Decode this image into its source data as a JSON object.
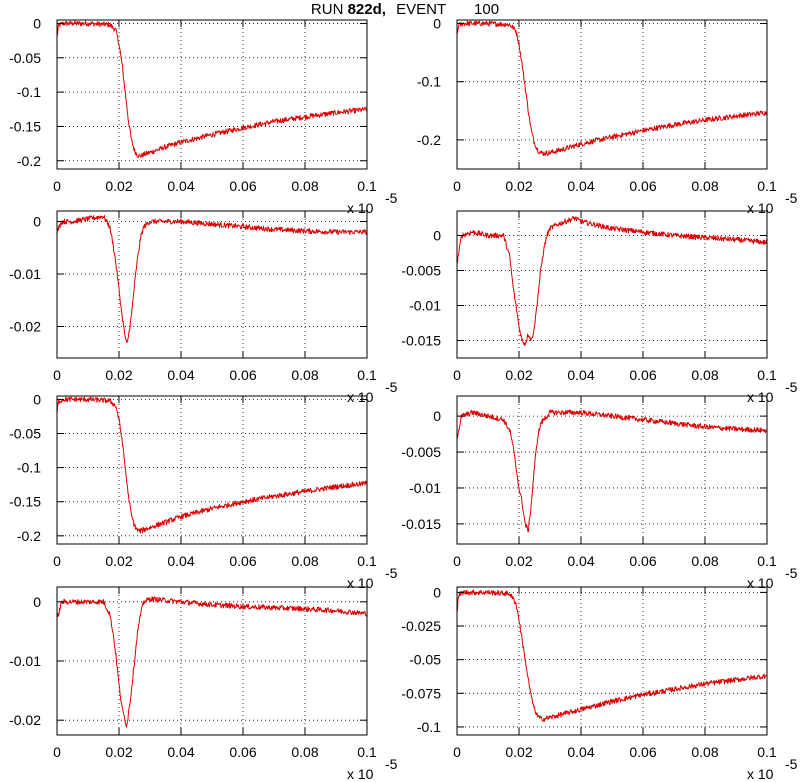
{
  "title": {
    "run_label": "RUN",
    "run_value": "822d,",
    "event_label": "EVENT",
    "event_value": "100"
  },
  "colors": {
    "trace": "#dd0000",
    "axes": "#000000"
  },
  "chart_data": [
    {
      "type": "line",
      "xlim": [
        0,
        0.1
      ],
      "ylim": [
        -0.212,
        0.005
      ],
      "xticks": [
        0,
        0.02,
        0.04,
        0.06,
        0.08,
        0.1
      ],
      "xtick_labels": [
        "0",
        "0.02",
        "0.04",
        "0.06",
        "0.08",
        "0.1"
      ],
      "yticks": [
        0,
        -0.05,
        -0.1,
        -0.15,
        -0.2
      ],
      "ytick_labels": [
        "0",
        "-0.05",
        "-0.1",
        "-0.15",
        "-0.2"
      ],
      "x_exponent": "x 10",
      "x_exponent_power": "-5",
      "grid": true,
      "series": [
        {
          "x": [
            0,
            0.0005,
            0.002,
            0.01,
            0.017,
            0.019,
            0.02,
            0.021,
            0.022,
            0.023,
            0.024,
            0.025,
            0.026,
            0.027,
            0.028,
            0.03,
            0.035,
            0.04,
            0.05,
            0.06,
            0.07,
            0.08,
            0.09,
            0.1
          ],
          "y": [
            -0.02,
            -0.003,
            0,
            0,
            -0.002,
            -0.01,
            -0.03,
            -0.06,
            -0.1,
            -0.14,
            -0.17,
            -0.185,
            -0.192,
            -0.193,
            -0.191,
            -0.188,
            -0.18,
            -0.173,
            -0.162,
            -0.152,
            -0.143,
            -0.136,
            -0.13,
            -0.125
          ]
        }
      ]
    },
    {
      "type": "line",
      "xlim": [
        0,
        0.1
      ],
      "ylim": [
        -0.25,
        0.006
      ],
      "xticks": [
        0,
        0.02,
        0.04,
        0.06,
        0.08,
        0.1
      ],
      "xtick_labels": [
        "0",
        "0.02",
        "0.04",
        "0.06",
        "0.08",
        "0.1"
      ],
      "yticks": [
        0,
        -0.1,
        -0.2
      ],
      "ytick_labels": [
        "0",
        "-0.1",
        "-0.2"
      ],
      "x_exponent": "x 10",
      "x_exponent_power": "-5",
      "grid": true,
      "series": [
        {
          "x": [
            0,
            0.0005,
            0.002,
            0.01,
            0.017,
            0.019,
            0.02,
            0.021,
            0.022,
            0.023,
            0.024,
            0.025,
            0.026,
            0.027,
            0.028,
            0.03,
            0.035,
            0.04,
            0.05,
            0.06,
            0.07,
            0.08,
            0.09,
            0.1
          ],
          "y": [
            -0.02,
            -0.003,
            0,
            0,
            -0.002,
            -0.012,
            -0.035,
            -0.07,
            -0.11,
            -0.15,
            -0.185,
            -0.205,
            -0.217,
            -0.222,
            -0.223,
            -0.222,
            -0.215,
            -0.207,
            -0.195,
            -0.184,
            -0.174,
            -0.166,
            -0.159,
            -0.153
          ]
        }
      ]
    },
    {
      "type": "line",
      "xlim": [
        0,
        0.1
      ],
      "ylim": [
        -0.026,
        0.002
      ],
      "xticks": [
        0,
        0.02,
        0.04,
        0.06,
        0.08,
        0.1
      ],
      "xtick_labels": [
        "0",
        "0.02",
        "0.04",
        "0.06",
        "0.08",
        "0.1"
      ],
      "yticks": [
        0,
        -0.01,
        -0.02
      ],
      "ytick_labels": [
        "0",
        "-0.01",
        "-0.02"
      ],
      "x_exponent": "x 10",
      "x_exponent_power": "-5",
      "grid": true,
      "series": [
        {
          "x": [
            0,
            0.0015,
            0.005,
            0.01,
            0.015,
            0.017,
            0.018,
            0.019,
            0.02,
            0.021,
            0.022,
            0.0225,
            0.023,
            0.024,
            0.025,
            0.026,
            0.027,
            0.028,
            0.03,
            0.04,
            0.05,
            0.06,
            0.07,
            0.08,
            0.09,
            0.1
          ],
          "y": [
            -0.002,
            0,
            0,
            0.0005,
            0.001,
            -0.001,
            -0.004,
            -0.008,
            -0.013,
            -0.018,
            -0.022,
            -0.0235,
            -0.022,
            -0.018,
            -0.012,
            -0.007,
            -0.003,
            -0.001,
            0,
            0,
            -0.0005,
            -0.001,
            -0.0015,
            -0.0018,
            -0.002,
            -0.002
          ]
        }
      ]
    },
    {
      "type": "line",
      "xlim": [
        0,
        0.1
      ],
      "ylim": [
        -0.0175,
        0.0035
      ],
      "xticks": [
        0,
        0.02,
        0.04,
        0.06,
        0.08,
        0.1
      ],
      "xtick_labels": [
        "0",
        "0.02",
        "0.04",
        "0.06",
        "0.08",
        "0.1"
      ],
      "yticks": [
        0,
        -0.005,
        -0.01,
        -0.015
      ],
      "ytick_labels": [
        "0",
        "-0.005",
        "-0.01",
        "-0.015"
      ],
      "x_exponent": "x 10",
      "x_exponent_power": "-5",
      "grid": true,
      "series": [
        {
          "x": [
            0,
            0.0015,
            0.005,
            0.01,
            0.015,
            0.017,
            0.018,
            0.019,
            0.02,
            0.021,
            0.022,
            0.023,
            0.024,
            0.025,
            0.026,
            0.027,
            0.028,
            0.029,
            0.03,
            0.032,
            0.035,
            0.038,
            0.04,
            0.045,
            0.05,
            0.06,
            0.07,
            0.08,
            0.09,
            0.1
          ],
          "y": [
            -0.004,
            0,
            0.0005,
            0,
            0,
            -0.003,
            -0.007,
            -0.01,
            -0.013,
            -0.015,
            -0.0155,
            -0.014,
            -0.015,
            -0.013,
            -0.009,
            -0.005,
            -0.002,
            0,
            0.001,
            0.0015,
            0.002,
            0.0025,
            0.002,
            0.0015,
            0.001,
            0.0005,
            0,
            -0.0003,
            -0.0006,
            -0.001
          ]
        }
      ]
    },
    {
      "type": "line",
      "xlim": [
        0,
        0.1
      ],
      "ylim": [
        -0.212,
        0.005
      ],
      "xticks": [
        0,
        0.02,
        0.04,
        0.06,
        0.08,
        0.1
      ],
      "xtick_labels": [
        "0",
        "0.02",
        "0.04",
        "0.06",
        "0.08",
        "0.1"
      ],
      "yticks": [
        0,
        -0.05,
        -0.1,
        -0.15,
        -0.2
      ],
      "ytick_labels": [
        "0",
        "-0.05",
        "-0.1",
        "-0.15",
        "-0.2"
      ],
      "x_exponent": "x 10",
      "x_exponent_power": "-5",
      "grid": true,
      "series": [
        {
          "x": [
            0,
            0.0005,
            0.002,
            0.01,
            0.017,
            0.019,
            0.02,
            0.021,
            0.022,
            0.023,
            0.024,
            0.025,
            0.026,
            0.027,
            0.028,
            0.03,
            0.035,
            0.04,
            0.05,
            0.06,
            0.07,
            0.08,
            0.09,
            0.1
          ],
          "y": [
            -0.02,
            -0.003,
            0,
            0,
            -0.002,
            -0.01,
            -0.03,
            -0.06,
            -0.1,
            -0.14,
            -0.17,
            -0.185,
            -0.192,
            -0.193,
            -0.191,
            -0.188,
            -0.18,
            -0.172,
            -0.16,
            -0.15,
            -0.142,
            -0.135,
            -0.128,
            -0.123
          ]
        }
      ]
    },
    {
      "type": "line",
      "xlim": [
        0,
        0.1
      ],
      "ylim": [
        -0.0178,
        0.0028
      ],
      "xticks": [
        0,
        0.02,
        0.04,
        0.06,
        0.08,
        0.1
      ],
      "xtick_labels": [
        "0",
        "0.02",
        "0.04",
        "0.06",
        "0.08",
        "0.1"
      ],
      "yticks": [
        0,
        -0.005,
        -0.01,
        -0.015
      ],
      "ytick_labels": [
        "0",
        "-0.005",
        "-0.01",
        "-0.015"
      ],
      "x_exponent": "x 10",
      "x_exponent_power": "-5",
      "grid": true,
      "series": [
        {
          "x": [
            0,
            0.0015,
            0.005,
            0.01,
            0.015,
            0.017,
            0.018,
            0.019,
            0.02,
            0.021,
            0.022,
            0.023,
            0.024,
            0.025,
            0.026,
            0.027,
            0.03,
            0.04,
            0.05,
            0.06,
            0.07,
            0.08,
            0.09,
            0.1
          ],
          "y": [
            -0.003,
            0,
            0.0005,
            0,
            -0.0005,
            -0.002,
            -0.004,
            -0.007,
            -0.01,
            -0.012,
            -0.015,
            -0.016,
            -0.012,
            -0.007,
            -0.003,
            -0.001,
            0.0005,
            0.0005,
            0,
            -0.0005,
            -0.001,
            -0.0015,
            -0.0018,
            -0.002
          ]
        }
      ]
    },
    {
      "type": "line",
      "xlim": [
        0,
        0.1
      ],
      "ylim": [
        -0.0225,
        0.0025
      ],
      "xticks": [
        0,
        0.02,
        0.04,
        0.06,
        0.08,
        0.1
      ],
      "xtick_labels": [
        "0",
        "0.02",
        "0.04",
        "0.06",
        "0.08",
        "0.1"
      ],
      "yticks": [
        0,
        -0.01,
        -0.02
      ],
      "ytick_labels": [
        "0",
        "-0.01",
        "-0.02"
      ],
      "x_exponent": "x 10",
      "x_exponent_power": "-5",
      "grid": true,
      "series": [
        {
          "x": [
            0,
            0.0015,
            0.005,
            0.01,
            0.015,
            0.017,
            0.018,
            0.019,
            0.02,
            0.021,
            0.022,
            0.0225,
            0.023,
            0.024,
            0.025,
            0.026,
            0.027,
            0.028,
            0.03,
            0.04,
            0.05,
            0.06,
            0.07,
            0.08,
            0.09,
            0.1
          ],
          "y": [
            -0.003,
            0,
            0,
            0,
            0,
            -0.002,
            -0.005,
            -0.009,
            -0.014,
            -0.018,
            -0.02,
            -0.021,
            -0.019,
            -0.015,
            -0.01,
            -0.005,
            -0.002,
            0,
            0.0005,
            0,
            -0.0005,
            -0.0008,
            -0.001,
            -0.0012,
            -0.0015,
            -0.002
          ]
        }
      ]
    },
    {
      "type": "line",
      "xlim": [
        0,
        0.1
      ],
      "ylim": [
        -0.106,
        0.004
      ],
      "xticks": [
        0,
        0.02,
        0.04,
        0.06,
        0.08,
        0.1
      ],
      "xtick_labels": [
        "0",
        "0.02",
        "0.04",
        "0.06",
        "0.08",
        "0.1"
      ],
      "yticks": [
        0,
        -0.025,
        -0.05,
        -0.075,
        -0.1
      ],
      "ytick_labels": [
        "0",
        "-0.025",
        "-0.05",
        "-0.075",
        "-0.1"
      ],
      "x_exponent": "x 10",
      "x_exponent_power": "-5",
      "grid": true,
      "series": [
        {
          "x": [
            0,
            0.0005,
            0.002,
            0.01,
            0.017,
            0.019,
            0.02,
            0.021,
            0.022,
            0.023,
            0.024,
            0.025,
            0.026,
            0.027,
            0.028,
            0.03,
            0.035,
            0.04,
            0.05,
            0.06,
            0.07,
            0.08,
            0.09,
            0.1
          ],
          "y": [
            -0.015,
            -0.002,
            0,
            0,
            -0.001,
            -0.008,
            -0.02,
            -0.035,
            -0.05,
            -0.065,
            -0.078,
            -0.087,
            -0.092,
            -0.094,
            -0.094,
            -0.093,
            -0.09,
            -0.087,
            -0.081,
            -0.076,
            -0.072,
            -0.068,
            -0.065,
            -0.062
          ]
        }
      ]
    }
  ]
}
